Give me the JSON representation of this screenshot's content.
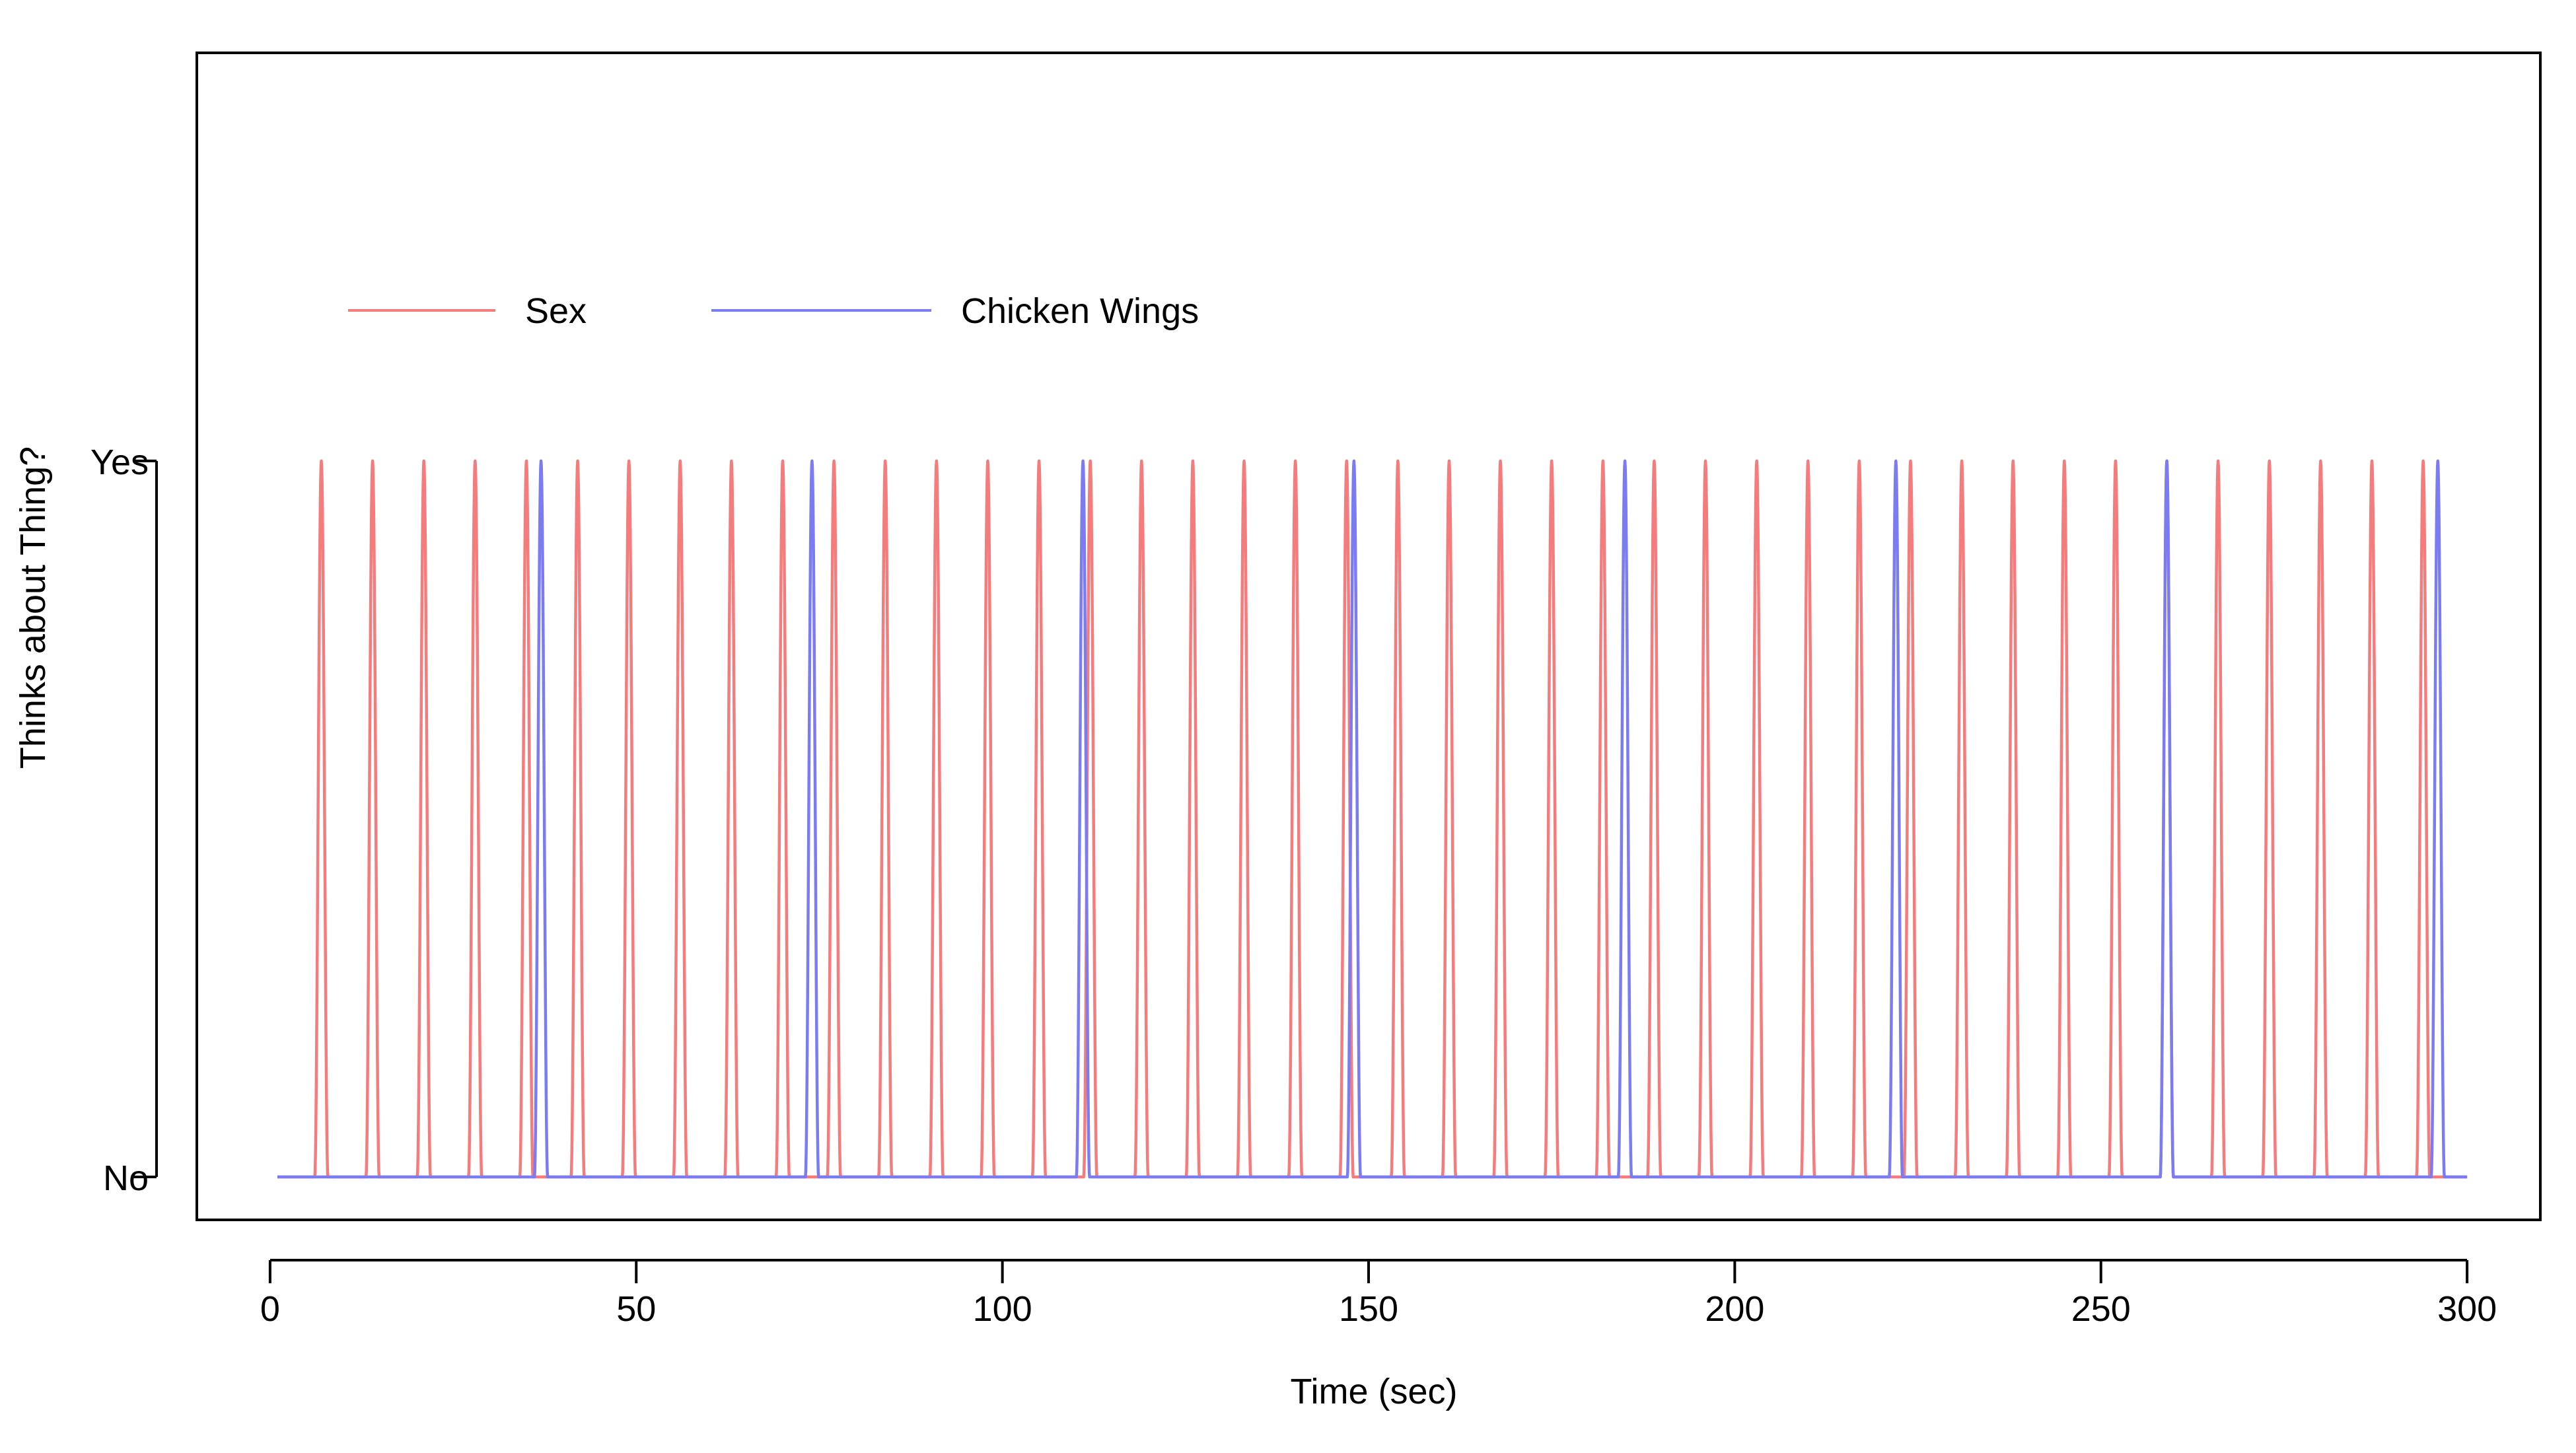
{
  "chart_data": {
    "type": "line",
    "title": "",
    "xlabel": "Time (sec)",
    "ylabel": "Thinks about Thing?",
    "xlim": [
      -10,
      310
    ],
    "ylim": [
      -0.06,
      1.57
    ],
    "x_ticks": [
      0,
      50,
      100,
      150,
      200,
      250,
      300
    ],
    "y_ticks": [
      {
        "value": 0,
        "label": "No"
      },
      {
        "value": 1,
        "label": "Yes"
      }
    ],
    "grid": false,
    "legend_position": "top-left",
    "x_range": [
      1,
      300
    ],
    "series": [
      {
        "name": "Sex",
        "color": "#f47c7c",
        "peaks": [
          7,
          14,
          21,
          28,
          35,
          42,
          49,
          56,
          63,
          70,
          77,
          84,
          91,
          98,
          105,
          112,
          119,
          126,
          133,
          140,
          147,
          154,
          161,
          168,
          175,
          182,
          189,
          196,
          203,
          210,
          217,
          224,
          231,
          238,
          245,
          252,
          259,
          266,
          273,
          280,
          287,
          294
        ],
        "pulse_half_width": 0.9
      },
      {
        "name": "Chicken Wings",
        "color": "#7b7bf2",
        "peaks": [
          37,
          74,
          111,
          148,
          185,
          222,
          259,
          296
        ],
        "pulse_half_width": 0.9
      }
    ]
  }
}
